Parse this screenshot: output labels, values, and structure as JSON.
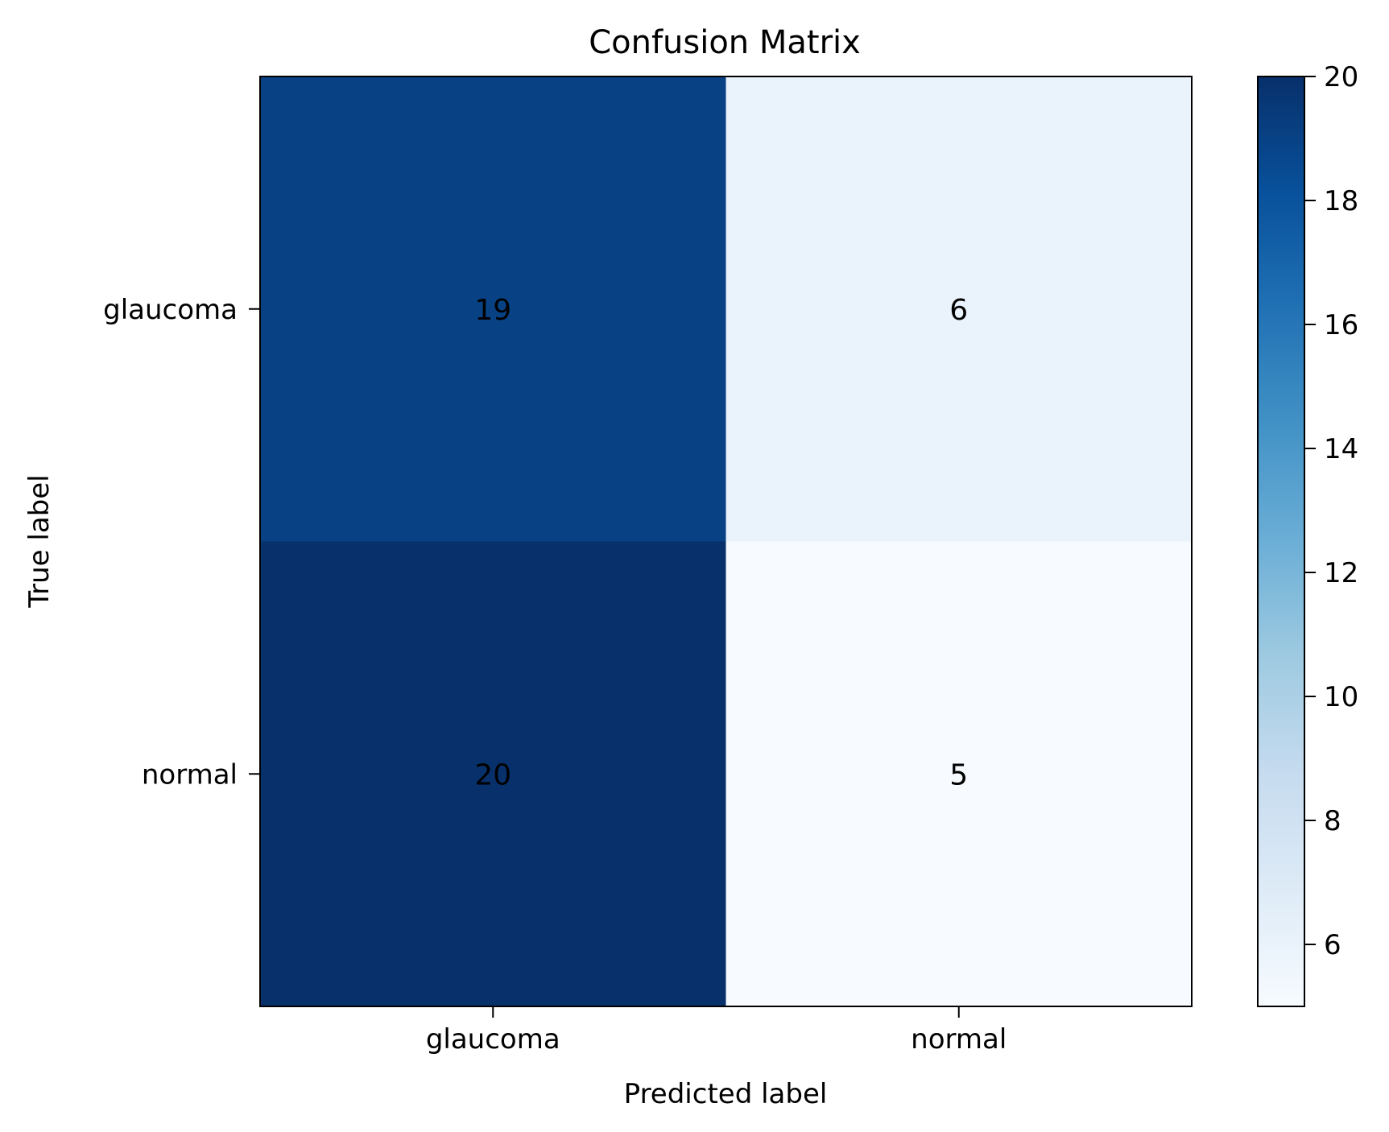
{
  "chart_data": {
    "type": "heatmap",
    "title": "Confusion Matrix",
    "xlabel": "Predicted label",
    "ylabel": "True label",
    "x_categories": [
      "glaucoma",
      "normal"
    ],
    "y_categories": [
      "glaucoma",
      "normal"
    ],
    "values": [
      [
        19,
        6
      ],
      [
        20,
        5
      ]
    ],
    "colormap": "Blues",
    "colorbar": {
      "min": 5,
      "max": 20,
      "ticks": [
        6,
        8,
        10,
        12,
        14,
        16,
        18,
        20
      ]
    },
    "colors": {
      "text_dark_bg": "#ffffff",
      "text_light_bg": "#08306b"
    }
  }
}
